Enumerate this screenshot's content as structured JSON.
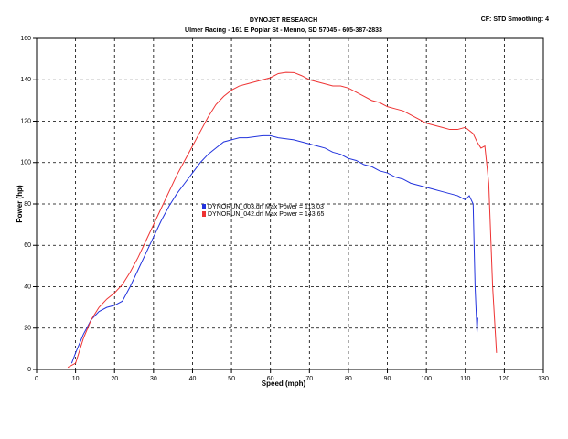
{
  "chart_data": {
    "type": "line",
    "title": "DYNOJET RESEARCH",
    "subtitle": "Ulmer Racing - 161 E Poplar St - Menno, SD 57045 - 605-387-2833",
    "annotation": "CF: STD  Smoothing: 4",
    "x_label": "Speed (mph)",
    "y_label": "Power (hp)",
    "xlim": [
      0,
      130
    ],
    "ylim": [
      0,
      160
    ],
    "xticks": [
      0,
      10,
      20,
      30,
      40,
      50,
      60,
      70,
      80,
      90,
      100,
      110,
      120,
      130
    ],
    "yticks": [
      0,
      20,
      40,
      60,
      80,
      100,
      120,
      140,
      160
    ],
    "grid": true,
    "series": [
      {
        "name": "DYNORUN_003.drf Max Power = 113.03",
        "color": "#2233dd",
        "x": [
          9,
          10,
          12,
          14,
          16,
          18,
          20,
          22,
          24,
          26,
          28,
          30,
          32,
          34,
          36,
          38,
          40,
          42,
          44,
          46,
          48,
          50,
          52,
          54,
          56,
          58,
          60,
          62,
          64,
          66,
          68,
          70,
          72,
          74,
          76,
          78,
          80,
          82,
          84,
          86,
          88,
          90,
          92,
          94,
          96,
          98,
          100,
          102,
          104,
          106,
          108,
          110,
          111,
          112,
          112.5,
          113,
          113.2
        ],
        "values": [
          3,
          8,
          17,
          24,
          28,
          30,
          31,
          33,
          40,
          48,
          56,
          64,
          72,
          79,
          85,
          90,
          95,
          100,
          104,
          107,
          110,
          111,
          112,
          112,
          112.5,
          113,
          113,
          112,
          111.5,
          111,
          110,
          109,
          108,
          107,
          105,
          104,
          102,
          101,
          99,
          98,
          96,
          95,
          93,
          92,
          90,
          89,
          88,
          87,
          86,
          85,
          84,
          82,
          84,
          80,
          40,
          18,
          25
        ]
      },
      {
        "name": "DYNORUN_042.drf Max Power = 143.65",
        "color": "#ee3333",
        "x": [
          8,
          10,
          12,
          14,
          16,
          18,
          20,
          22,
          24,
          26,
          28,
          30,
          32,
          34,
          36,
          38,
          40,
          42,
          44,
          46,
          48,
          50,
          52,
          54,
          56,
          58,
          60,
          62,
          64,
          66,
          68,
          70,
          72,
          74,
          76,
          78,
          80,
          82,
          84,
          86,
          88,
          90,
          92,
          94,
          96,
          98,
          100,
          102,
          104,
          106,
          108,
          110,
          112,
          113,
          114,
          115,
          116,
          117,
          118
        ],
        "values": [
          1,
          3,
          15,
          24,
          30,
          34,
          37,
          41,
          47,
          54,
          62,
          70,
          78,
          86,
          94,
          101,
          108,
          115,
          122,
          128,
          132,
          135,
          137,
          138,
          139,
          140,
          141,
          143,
          143.6,
          143.5,
          142,
          140,
          139,
          138,
          137,
          137,
          136,
          134,
          132,
          130,
          129,
          127,
          126,
          125,
          123,
          121,
          119,
          118,
          117,
          116,
          116,
          117,
          114,
          110,
          107,
          108,
          90,
          40,
          8
        ]
      }
    ]
  }
}
